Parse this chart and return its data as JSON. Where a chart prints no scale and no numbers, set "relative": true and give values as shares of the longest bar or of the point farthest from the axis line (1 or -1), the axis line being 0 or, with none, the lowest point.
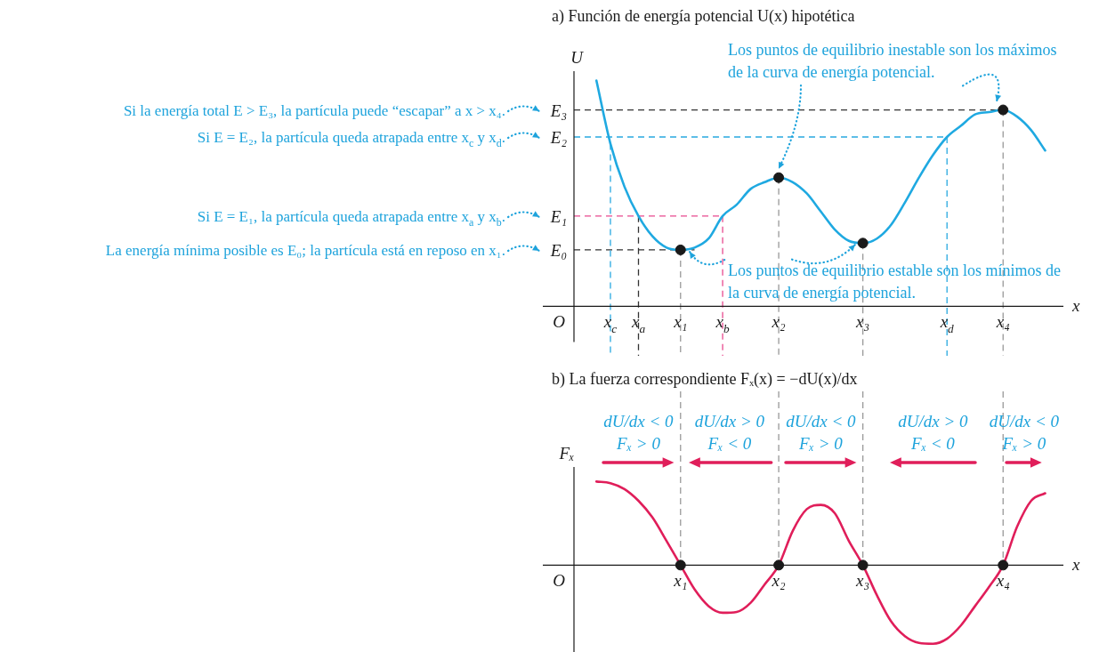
{
  "chart_data": [
    {
      "type": "line",
      "title": "a) Función de energía potencial U(x) hipotética",
      "xlabel": "x",
      "ylabel": "U",
      "relative": true,
      "categories": [
        null,
        "x$_{c}$",
        null,
        "x$_{a}$",
        null,
        null,
        "x₁",
        null,
        null,
        "x$_{b}$",
        null,
        null,
        null,
        "x₂",
        null,
        null,
        null,
        null,
        null,
        "x₃",
        null,
        null,
        null,
        null,
        null,
        "x$_{d}$",
        null,
        null,
        null,
        "x₄",
        null,
        null,
        null
      ],
      "series": [
        {
          "color": "#1fa9e1",
          "values": [
            1.0,
            0.72,
            0.53,
            0.4,
            0.31,
            0.26,
            0.25,
            0.26,
            0.3,
            0.4,
            0.45,
            0.52,
            0.55,
            0.57,
            0.55,
            0.5,
            0.42,
            0.34,
            0.29,
            0.28,
            0.3,
            0.36,
            0.46,
            0.57,
            0.67,
            0.75,
            0.8,
            0.85,
            0.86,
            0.87,
            0.84,
            0.78,
            0.69
          ]
        },
        {
          "type": "scatter",
          "color": "#1a1a1a",
          "x": [
            "x₁",
            "x₂",
            "x₃",
            "x₄"
          ],
          "values": [
            0.25,
            0.57,
            0.28,
            0.87
          ]
        }
      ],
      "ref_lines": [
        {
          "axis": "y",
          "value": 0.87,
          "label": "E₃",
          "color": "#333333",
          "line_style": "dashed"
        },
        {
          "axis": "y",
          "value": 0.75,
          "label": "E₂",
          "color": "#29a9e0",
          "line_style": "dashed"
        },
        {
          "axis": "y",
          "value": 0.4,
          "label": "E₁",
          "color": "#e8498f",
          "line_style": "dashed"
        },
        {
          "axis": "y",
          "value": 0.25,
          "label": "E₀",
          "color": "#333333",
          "line_style": "dashed"
        },
        {
          "axis": "x",
          "value": "x$_{c}$",
          "color": "#29a9e0",
          "line_style": "dashed"
        },
        {
          "axis": "x",
          "value": "x$_{a}$",
          "color": "#333333",
          "line_style": "dashed"
        },
        {
          "axis": "x",
          "value": "x₁",
          "color": "#999999",
          "line_style": "dashed"
        },
        {
          "axis": "x",
          "value": "x$_{b}$",
          "color": "#e8498f",
          "line_style": "dashed"
        },
        {
          "axis": "x",
          "value": "x₂",
          "color": "#999999",
          "line_style": "dashed"
        },
        {
          "axis": "x",
          "value": "x₃",
          "color": "#999999",
          "line_style": "dashed"
        },
        {
          "axis": "x",
          "value": "x$_{d}$",
          "color": "#29a9e0",
          "line_style": "dashed"
        },
        {
          "axis": "x",
          "value": "x₄",
          "color": "#999999",
          "line_style": "dashed"
        }
      ],
      "annotations": [
        "O",
        "Si la energía total E > E₃, la partícula puede “escapar” a x > x₄.",
        "Si E = E₂, la partícula queda atrapada entre x$_{c}$ y x$_{d}$.",
        "Si E = E₁, la partícula queda atrapada entre x$_{a}$ y x$_{b}$.",
        "La energía mínima posible es E₀; la partícula está en reposo en x₁.",
        "Los puntos de equilibrio inestable son los máximos de la curva de energía potencial.",
        "Los puntos de equilibrio estable son los mínimos de la curva de energía potencial."
      ]
    },
    {
      "type": "line",
      "title": "b) La fuerza correspondiente Fₓ(x) = −dU(x)/dx",
      "xlabel": "x",
      "ylabel": "Fₓ",
      "relative": true,
      "categories": [
        null,
        null,
        null,
        null,
        null,
        null,
        "x₁",
        null,
        null,
        null,
        null,
        null,
        null,
        "x₂",
        null,
        null,
        null,
        null,
        null,
        "x₃",
        null,
        null,
        null,
        null,
        null,
        null,
        null,
        null,
        null,
        "x₄",
        null,
        null,
        null
      ],
      "series": [
        {
          "color": "#e01e5a",
          "values": [
            1.0,
            0.98,
            0.91,
            0.77,
            0.57,
            0.29,
            0,
            -0.29,
            -0.49,
            -0.57,
            -0.56,
            -0.45,
            -0.23,
            0,
            0.41,
            0.67,
            0.72,
            0.62,
            0.29,
            0,
            -0.36,
            -0.67,
            -0.85,
            -0.93,
            -0.94,
            -0.88,
            -0.72,
            -0.49,
            -0.26,
            0,
            0.46,
            0.77,
            0.86
          ]
        },
        {
          "type": "scatter",
          "color": "#1a1a1a",
          "x": [
            "x₁",
            "x₂",
            "x₃",
            "x₄"
          ],
          "values": [
            0,
            0,
            0,
            0
          ]
        }
      ],
      "ref_lines": [
        {
          "axis": "x",
          "value": "x₁",
          "color": "#999999",
          "line_style": "dashed"
        },
        {
          "axis": "x",
          "value": "x₂",
          "color": "#999999",
          "line_style": "dashed"
        },
        {
          "axis": "x",
          "value": "x₃",
          "color": "#999999",
          "line_style": "dashed"
        },
        {
          "axis": "x",
          "value": "x₄",
          "color": "#999999",
          "line_style": "dashed"
        }
      ],
      "annotations": [
        "O",
        "dU/dx < 0\nFₓ > 0",
        "dU/dx > 0\nFₓ < 0",
        "dU/dx < 0\nFₓ > 0",
        "dU/dx > 0\nFₓ < 0",
        "dU/dx < 0\nFₓ > 0"
      ]
    }
  ]
}
